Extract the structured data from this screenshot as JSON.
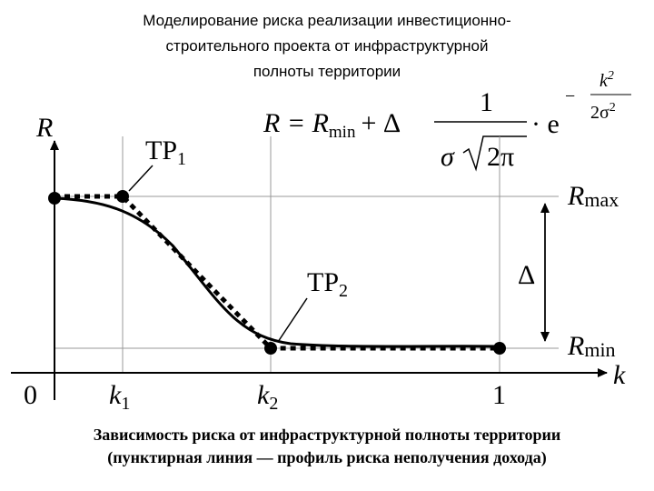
{
  "title": [
    "Моделирование риска реализации инвестиционно-",
    "строительного проекта от инфраструктурной",
    "полноты территории"
  ],
  "axes": {
    "y": "R",
    "x": "k"
  },
  "x_labels": [
    {
      "base": "0"
    },
    {
      "base": "k",
      "sub": "1"
    },
    {
      "base": "k",
      "sub": "2"
    },
    {
      "base": "1"
    }
  ],
  "points": [
    {
      "base": "TP",
      "sub": "1"
    },
    {
      "base": "TP",
      "sub": "2"
    }
  ],
  "levels": {
    "max": {
      "base": "R",
      "sub": "max"
    },
    "min": {
      "base": "R",
      "sub": "min"
    },
    "delta": "Δ"
  },
  "formula": {
    "lhs": "R = R",
    "lhs_sub": "min",
    "plus": "+ Δ",
    "numerator": "1",
    "sigma": "σ",
    "root": "2π",
    "dot_e": "· e",
    "minus": "−",
    "exp_num": "k",
    "exp_num_pow": "2",
    "exp_den": "2σ",
    "exp_den_pow": "2"
  },
  "caption": [
    "Зависимость риска от инфраструктурной полноты территории",
    "(пунктирная линия — профиль риска неполучения дохода)"
  ]
}
